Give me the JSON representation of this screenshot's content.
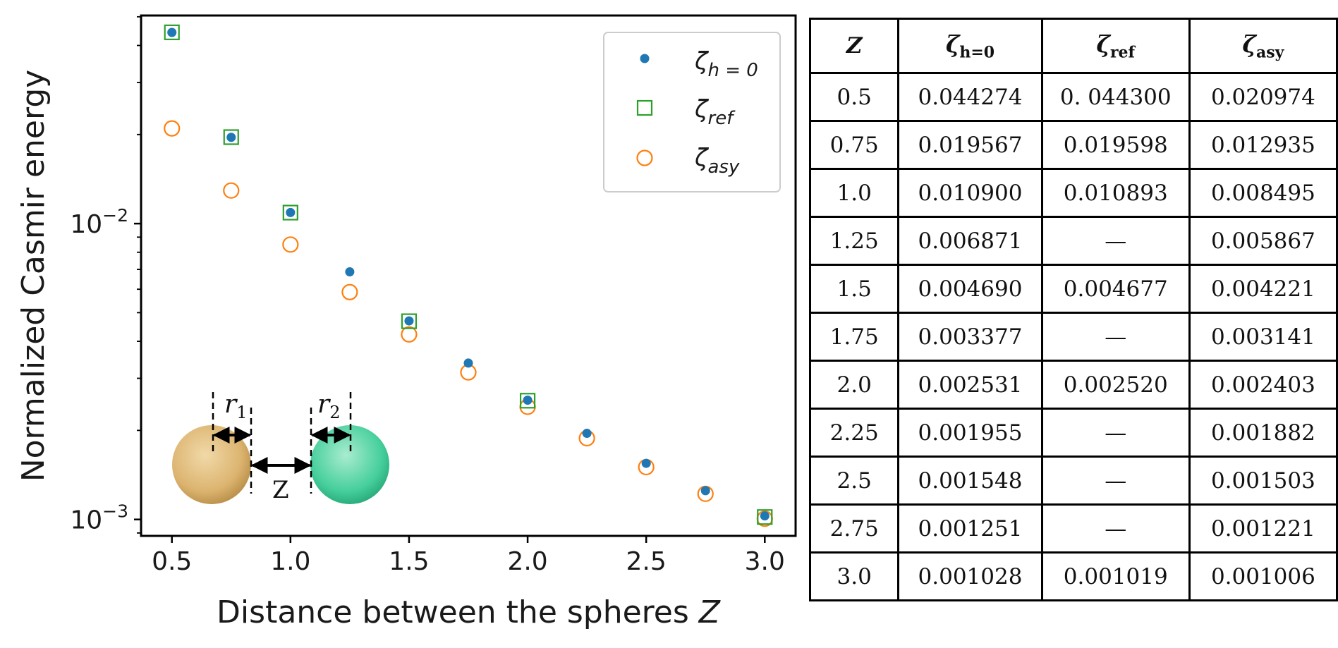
{
  "chart_data": {
    "type": "scatter",
    "xlabel_text": "Distance between the spheres ",
    "xlabel_var": "Z",
    "ylabel": "Normalized Casmir energy",
    "yscale": "log",
    "xlim": [
      0.37,
      3.13
    ],
    "ylim": [
      0.00088,
      0.0505
    ],
    "x_ticks": [
      0.5,
      1.0,
      1.5,
      2.0,
      2.5,
      3.0
    ],
    "x_tick_labels": [
      "0.5",
      "1.0",
      "1.5",
      "2.0",
      "2.5",
      "3.0"
    ],
    "y_ticks": [
      0.01,
      0.001
    ],
    "y_tick_labels": [
      {
        "base": "10",
        "exp": "−2"
      },
      {
        "base": "10",
        "exp": "−3"
      }
    ],
    "legend_placement": "top-right",
    "series": [
      {
        "name": "ζh=0",
        "legend_base": "ζ",
        "legend_sub": "h = 0",
        "marker": "dot",
        "color": "#1f77b4",
        "x": [
          0.5,
          0.75,
          1.0,
          1.25,
          1.5,
          1.75,
          2.0,
          2.25,
          2.5,
          2.75,
          3.0
        ],
        "y": [
          0.044274,
          0.019567,
          0.0109,
          0.006871,
          0.00469,
          0.003377,
          0.002531,
          0.001955,
          0.001548,
          0.001251,
          0.001028
        ]
      },
      {
        "name": "ζref",
        "legend_base": "ζ",
        "legend_sub": "ref",
        "marker": "square",
        "color": "#2ca02c",
        "x": [
          0.5,
          0.75,
          1.0,
          1.5,
          2.0,
          3.0
        ],
        "y": [
          0.0443,
          0.019598,
          0.010893,
          0.004677,
          0.00252,
          0.001019
        ]
      },
      {
        "name": "ζasy",
        "legend_base": "ζ",
        "legend_sub": "asy",
        "marker": "circle",
        "color": "#ff7f0e",
        "x": [
          0.5,
          0.75,
          1.0,
          1.25,
          1.5,
          1.75,
          2.0,
          2.25,
          2.5,
          2.75,
          3.0
        ],
        "y": [
          0.020974,
          0.012935,
          0.008495,
          0.005867,
          0.004221,
          0.003141,
          0.002403,
          0.001882,
          0.001503,
          0.001221,
          0.001006
        ]
      }
    ],
    "inset": {
      "r1_base": "r",
      "r1_sub": "1",
      "r2_base": "r",
      "r2_sub": "2",
      "z_label": "Z",
      "sphere1_color": "#e0b978",
      "sphere2_color": "#3fcf9a"
    },
    "table": {
      "headers": [
        {
          "base": "Z",
          "sub": ""
        },
        {
          "base": "ζ",
          "sub": "h=0"
        },
        {
          "base": "ζ",
          "sub": "ref"
        },
        {
          "base": "ζ",
          "sub": "asy"
        }
      ],
      "rows": [
        [
          "0.5",
          "0.044274",
          "0. 044300",
          "0.020974"
        ],
        [
          "0.75",
          "0.019567",
          "0.019598",
          "0.012935"
        ],
        [
          "1.0",
          "0.010900",
          "0.010893",
          "0.008495"
        ],
        [
          "1.25",
          "0.006871",
          "—",
          "0.005867"
        ],
        [
          "1.5",
          "0.004690",
          "0.004677",
          "0.004221"
        ],
        [
          "1.75",
          "0.003377",
          "—",
          "0.003141"
        ],
        [
          "2.0",
          "0.002531",
          "0.002520",
          "0.002403"
        ],
        [
          "2.25",
          "0.001955",
          "—",
          "0.001882"
        ],
        [
          "2.5",
          "0.001548",
          "—",
          "0.001503"
        ],
        [
          "2.75",
          "0.001251",
          "—",
          "0.001221"
        ],
        [
          "3.0",
          "0.001028",
          "0.001019",
          "0.001006"
        ]
      ]
    }
  }
}
